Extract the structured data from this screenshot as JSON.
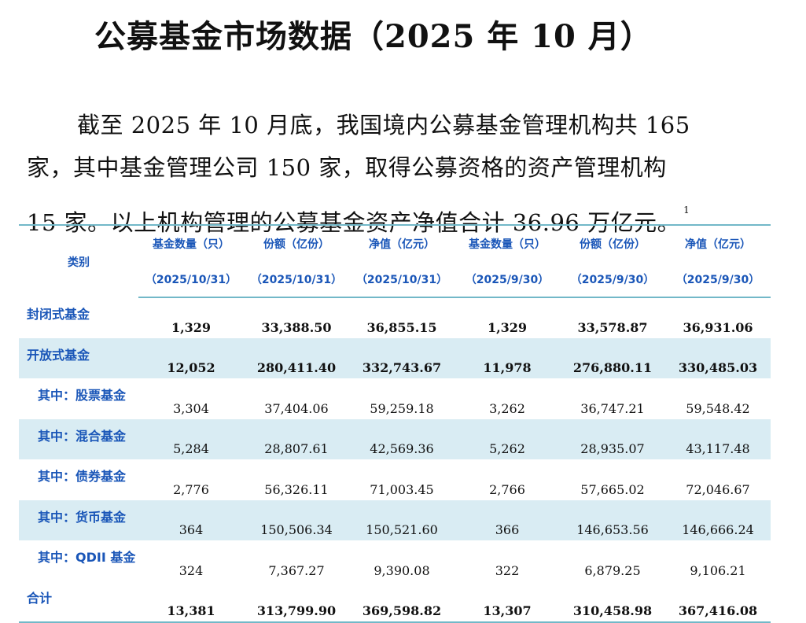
{
  "title": "公募基金市场数据（2025 年 10 月）",
  "paragraph": {
    "line1": "截至 2025 年 10 月底，我国境内公募基金管理机构共 165",
    "line2": "家，其中基金管理公司 150 家，取得公募资格的资产管理机构",
    "line3": "15 家。以上机构管理的公募基金资产净值合计 36.96 万亿元。",
    "footnote": "1"
  },
  "table": {
    "category_header": "类别",
    "headers": [
      {
        "name": "基金数量（只）",
        "date": "（2025/10/31）"
      },
      {
        "name": "份额（亿份）",
        "date": "（2025/10/31）"
      },
      {
        "name": "净值（亿元）",
        "date": "（2025/10/31）"
      },
      {
        "name": "基金数量（只）",
        "date": "（2025/9/30）"
      },
      {
        "name": "份额（亿份）",
        "date": "（2025/9/30）"
      },
      {
        "name": "净值（亿元）",
        "date": "（2025/9/30）"
      }
    ],
    "rows": [
      {
        "label": "封闭式基金",
        "values": [
          "1,329",
          "33,388.50",
          "36,855.15",
          "1,329",
          "33,578.87",
          "36,931.06"
        ]
      },
      {
        "label": "开放式基金",
        "values": [
          "12,052",
          "280,411.40",
          "332,743.67",
          "11,978",
          "276,880.11",
          "330,485.03"
        ]
      },
      {
        "label": "其中：股票基金",
        "values": [
          "3,304",
          "37,404.06",
          "59,259.18",
          "3,262",
          "36,747.21",
          "59,548.42"
        ]
      },
      {
        "label": "其中：混合基金",
        "values": [
          "5,284",
          "28,807.61",
          "42,569.36",
          "5,262",
          "28,935.07",
          "43,117.48"
        ]
      },
      {
        "label": "其中：债券基金",
        "values": [
          "2,776",
          "56,326.11",
          "71,003.45",
          "2,766",
          "57,665.02",
          "72,046.67"
        ]
      },
      {
        "label": "其中：货币基金",
        "values": [
          "364",
          "150,506.34",
          "150,521.60",
          "366",
          "146,653.56",
          "146,666.24"
        ]
      },
      {
        "label": "其中：QDII 基金",
        "values": [
          "324",
          "7,367.27",
          "9,390.08",
          "322",
          "6,879.25",
          "9,106.21"
        ]
      },
      {
        "label": "合计",
        "values": [
          "13,381",
          "313,799.90",
          "369,598.82",
          "13,307",
          "310,458.98",
          "367,416.08"
        ]
      }
    ]
  },
  "colors": {
    "accent": "#1a56b8",
    "rule": "#72b8c8",
    "row_shade": "#d9ecf3"
  }
}
